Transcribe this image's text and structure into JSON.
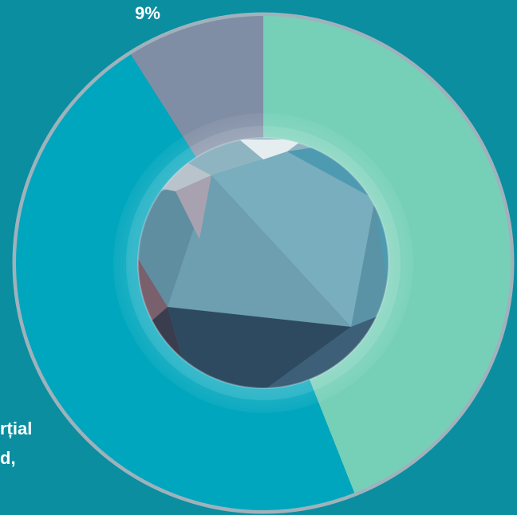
{
  "chart_data": {
    "type": "pie",
    "variant": "donut",
    "slices": [
      {
        "label_text": "",
        "value": 44,
        "color": "#76d0b7"
      },
      {
        "label_text": "",
        "value": 47,
        "color": "#00a6bd"
      },
      {
        "label_text": "9%",
        "value": 9,
        "color": "#808ea5"
      }
    ],
    "partial_labels": [
      {
        "text": "rțial"
      },
      {
        "text": "d,"
      }
    ],
    "background": "#0a8ea0",
    "ring_color": "#9fb2bc"
  }
}
